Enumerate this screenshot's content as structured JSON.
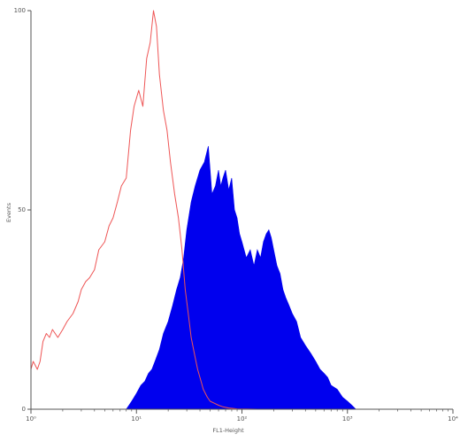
{
  "chart_data": {
    "type": "area",
    "xlabel": "FL1-Height",
    "ylabel": "Events",
    "x_scale": "log",
    "xlim": [
      1,
      10000
    ],
    "ylim": [
      0,
      100
    ],
    "x_ticks": [
      "10⁰",
      "10¹",
      "10²",
      "10³",
      "10⁴"
    ],
    "y_ticks": [
      "0",
      "50",
      "100"
    ],
    "grid": false,
    "series": [
      {
        "style": "outline",
        "color": "#ee5555",
        "x": [
          1.0,
          1.05,
          1.1,
          1.15,
          1.22,
          1.3,
          1.4,
          1.5,
          1.6,
          1.8,
          2.0,
          2.2,
          2.5,
          2.8,
          3.0,
          3.3,
          3.6,
          4.0,
          4.4,
          5.0,
          5.5,
          6.0,
          6.6,
          7.2,
          8.0,
          8.8,
          9.5,
          10.5,
          11.5,
          12.5,
          13.5,
          14.5,
          15.5,
          16.5,
          18.0,
          19.5,
          21.0,
          23.0,
          25.0,
          27.0,
          29.0,
          31.0,
          33.0,
          36.0,
          38.0,
          41.0,
          43.0,
          47.0,
          50.0,
          55.0,
          60.0,
          66.0,
          75.0,
          90.0,
          110.0,
          140.0
        ],
        "values": [
          10,
          12,
          11,
          10,
          12,
          17,
          19,
          18,
          20,
          18,
          20,
          22,
          24,
          27,
          30,
          32,
          33,
          35,
          40,
          42,
          46,
          48,
          52,
          56,
          58,
          70,
          76,
          80,
          76,
          88,
          92,
          100,
          96,
          84,
          75,
          70,
          62,
          54,
          48,
          40,
          30,
          24,
          18,
          13,
          10,
          7,
          5,
          3,
          2,
          1.5,
          1,
          0.6,
          0.3,
          0.1,
          0.05,
          0
        ]
      },
      {
        "style": "filled",
        "color": "#0000ee",
        "x": [
          8.0,
          8.5,
          9.0,
          9.5,
          10.0,
          11.0,
          12.0,
          13.0,
          14.0,
          15.0,
          16.5,
          18.0,
          20.0,
          22.0,
          24.0,
          26.0,
          28.0,
          30.0,
          33.0,
          36.0,
          40.0,
          44.0,
          48.0,
          52.0,
          56.0,
          60.0,
          63.0,
          66.0,
          70.0,
          75.0,
          80.0,
          85.0,
          90.0,
          95.0,
          100.0,
          110.0,
          120.0,
          130.0,
          140.0,
          150.0,
          160.0,
          170.0,
          180.0,
          190.0,
          200.0,
          215.0,
          230.0,
          245.0,
          260.0,
          280.0,
          300.0,
          330.0,
          360.0,
          400.0,
          450.0,
          500.0,
          550.0,
          600.0,
          650.0,
          700.0,
          800.0,
          900.0,
          1000.0,
          1100.0,
          1200.0
        ],
        "values": [
          0,
          1,
          2,
          3,
          4,
          6,
          7,
          9,
          10,
          12,
          15,
          19,
          22,
          26,
          30,
          33,
          38,
          45,
          52,
          56,
          60,
          62,
          66,
          54,
          56,
          60,
          56,
          58,
          60,
          55,
          58,
          50,
          48,
          44,
          42,
          38,
          40,
          36,
          40,
          38,
          42,
          44,
          45,
          43,
          40,
          36,
          34,
          30,
          28,
          26,
          24,
          22,
          18,
          16,
          14,
          12,
          10,
          9,
          8,
          6,
          5,
          3,
          2,
          1,
          0
        ]
      }
    ]
  }
}
